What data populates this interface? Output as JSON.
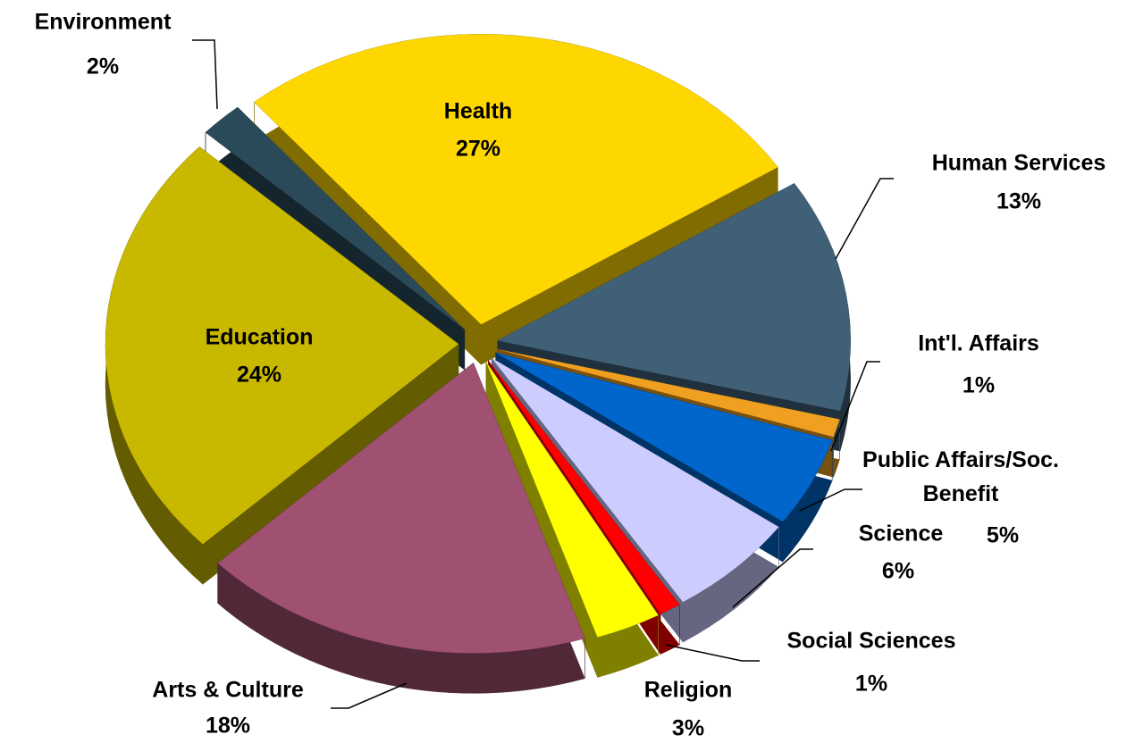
{
  "chart_data": {
    "type": "pie",
    "categories": [
      "Health",
      "Human Services",
      "Int'l. Affairs",
      "Public Affairs/Soc. Benefit",
      "Science",
      "Social Sciences",
      "Religion",
      "Arts & Culture",
      "Education",
      "Environment"
    ],
    "values": [
      27,
      13,
      1,
      5,
      6,
      1,
      3,
      18,
      24,
      2
    ],
    "value_labels": [
      "27%",
      "13%",
      "1%",
      "5%",
      "6%",
      "1%",
      "3%",
      "18%",
      "24%",
      "2%"
    ],
    "colors": [
      "#FFD700",
      "#406078",
      "#F0A020",
      "#0066CC",
      "#CCCCFF",
      "#FF0000",
      "#FFFF00",
      "#A05070",
      "#C8B800",
      "#2A4A5A"
    ]
  }
}
